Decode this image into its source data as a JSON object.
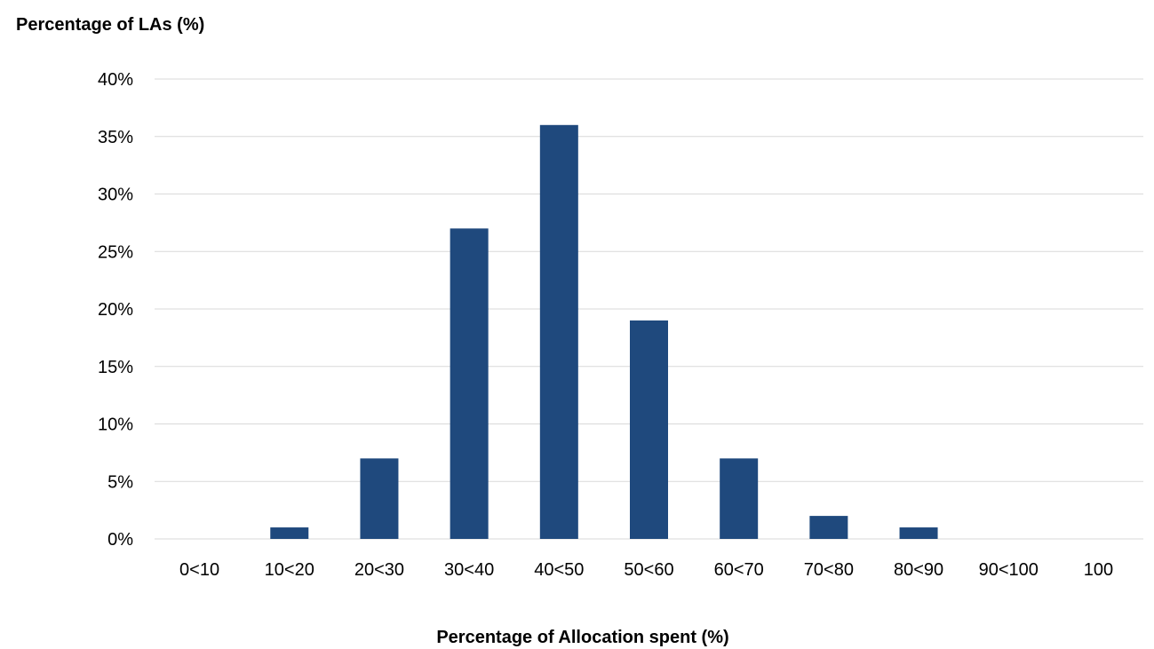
{
  "chart_data": {
    "type": "bar",
    "ylabel": "Percentage of LAs (%)",
    "xlabel": "Percentage of Allocation spent (%)",
    "categories": [
      "0<10",
      "10<20",
      "20<30",
      "30<40",
      "40<50",
      "50<60",
      "60<70",
      "70<80",
      "80<90",
      "90<100",
      "100"
    ],
    "values": [
      0,
      1,
      7,
      27,
      36,
      19,
      7,
      2,
      1,
      0,
      0
    ],
    "ylim": [
      0,
      40
    ],
    "yticks": [
      "0%",
      "5%",
      "10%",
      "15%",
      "20%",
      "25%",
      "30%",
      "35%",
      "40%"
    ],
    "ytick_values": [
      0,
      5,
      10,
      15,
      20,
      25,
      30,
      35,
      40
    ],
    "grid": true,
    "bar_color": "#1f497d",
    "grid_color": "#d9d9d9"
  }
}
